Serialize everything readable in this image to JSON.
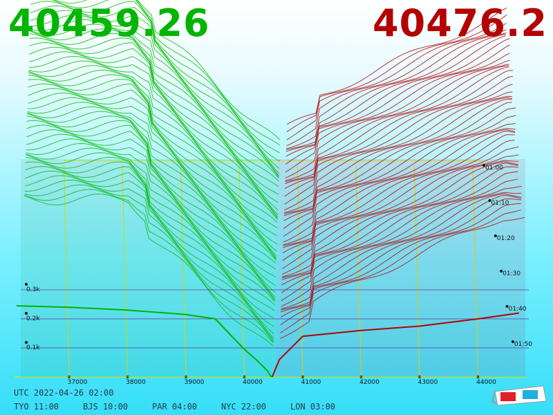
{
  "header": {
    "bid": "40459.26",
    "ask": "40476.2"
  },
  "chart_data": {
    "type": "depth3d",
    "bids": {
      "color": "#00b400",
      "x": [
        40459.26,
        40400,
        40300,
        40200,
        40000,
        39500,
        39000,
        38000,
        37000,
        36100
      ],
      "values": [
        0,
        20,
        40,
        60,
        95,
        200,
        215,
        230,
        240,
        245
      ]
    },
    "asks": {
      "color": "#b40000",
      "x": [
        40476.2,
        40600,
        40800,
        41000,
        42000,
        43000,
        44000,
        44700
      ],
      "values": [
        0,
        60,
        100,
        140,
        160,
        175,
        200,
        220
      ]
    },
    "xticks": [
      37000,
      38000,
      39000,
      40000,
      41000,
      42000,
      43000,
      44000
    ],
    "zticks": [
      {
        "value": 100,
        "label": "0.1k"
      },
      {
        "value": 200,
        "label": "0.2k"
      },
      {
        "value": 300,
        "label": "0.3k"
      }
    ],
    "time_ticks": [
      "01:00",
      "01:10",
      "01:20",
      "01:30",
      "01:40",
      "01:50"
    ]
  },
  "footer": {
    "utc": "UTC 2022-04-26 02:00",
    "zones": [
      "TYO 11:00",
      "BJS 10:00",
      "PAR 04:00",
      "NYC 22:00",
      "LON 03:00"
    ]
  }
}
